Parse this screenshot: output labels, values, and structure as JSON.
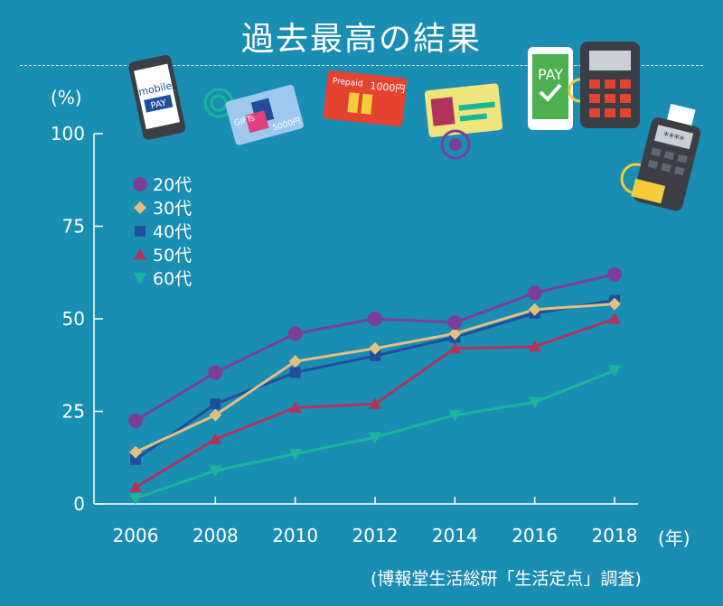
{
  "title": "過去最高の結果",
  "y_unit": "(%)",
  "x_unit": "(年)",
  "source": "(博報堂生活総研「生活定点」調査)",
  "decorations": {
    "mobile_pay_line1": "mobile",
    "mobile_pay_line2": "PAY",
    "gift_card": "GIFTs",
    "gift_amount": "5000円",
    "prepaid_label": "Prepaid",
    "prepaid_amount": "1000円",
    "pay_screen": "PAY",
    "terminal_code": "****"
  },
  "chart_data": {
    "type": "line",
    "title": "",
    "xlabel": "(年)",
    "ylabel": "(%)",
    "x": [
      2006,
      2008,
      2010,
      2012,
      2014,
      2016,
      2018
    ],
    "ylim": [
      0,
      100
    ],
    "yticks": [
      0,
      25,
      50,
      75,
      100
    ],
    "grid": false,
    "legend_position": "top-left",
    "series": [
      {
        "name": "20代",
        "color": "#7b3f98",
        "marker": "circle",
        "values": [
          22.5,
          35.5,
          46,
          50,
          49,
          57,
          62
        ]
      },
      {
        "name": "30代",
        "color": "#e3c07f",
        "marker": "diamond",
        "values": [
          14,
          24,
          38.5,
          42,
          46,
          52.5,
          54
        ]
      },
      {
        "name": "40代",
        "color": "#1f4e9c",
        "marker": "square",
        "values": [
          12,
          27,
          35.5,
          40,
          45,
          51.5,
          55
        ]
      },
      {
        "name": "50代",
        "color": "#b0345c",
        "marker": "triangle-up",
        "values": [
          4.5,
          17.5,
          26,
          27,
          42,
          42.5,
          50
        ]
      },
      {
        "name": "60代",
        "color": "#1bb59a",
        "marker": "triangle-down",
        "values": [
          1.5,
          9,
          13.5,
          18,
          24,
          27.5,
          36
        ]
      }
    ]
  }
}
